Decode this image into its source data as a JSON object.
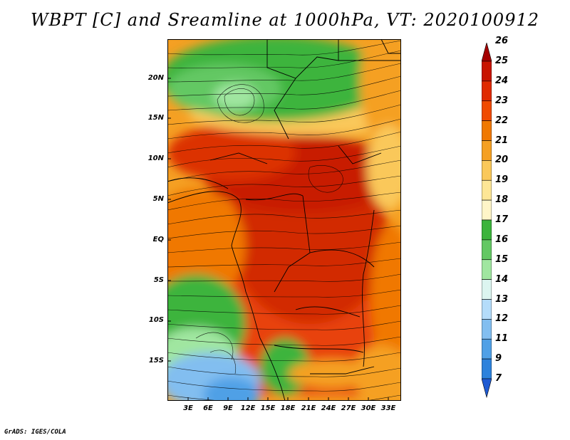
{
  "title": "WBPT [C] and Sreamline at 1000hPa, VT: 2020100912",
  "map": {
    "lat_labels": [
      "20N",
      "15N",
      "10N",
      "5N",
      "EQ",
      "5S",
      "10S",
      "15S"
    ],
    "lon_labels": [
      "3E",
      "6E",
      "9E",
      "12E",
      "15E",
      "18E",
      "21E",
      "24E",
      "27E",
      "30E",
      "33E"
    ],
    "variable": "WBPT",
    "level": "1000hPa"
  },
  "colorbar": {
    "labels": [
      "26",
      "25",
      "24",
      "23",
      "22",
      "21",
      "20",
      "19",
      "18",
      "17",
      "16",
      "15",
      "14",
      "13",
      "12",
      "11",
      "9",
      "7"
    ],
    "colors": [
      "#a50000",
      "#c81400",
      "#e02a00",
      "#f04a00",
      "#f07800",
      "#f5a023",
      "#fac85a",
      "#fde696",
      "#fff5c8",
      "#3cb43c",
      "#64c864",
      "#a0e6a0",
      "#dcf5f0",
      "#b4dcfa",
      "#82bef0",
      "#50a0e6",
      "#2d82dc",
      "#1e5ad2"
    ]
  },
  "credit": "GrADS: IGES/COLA"
}
